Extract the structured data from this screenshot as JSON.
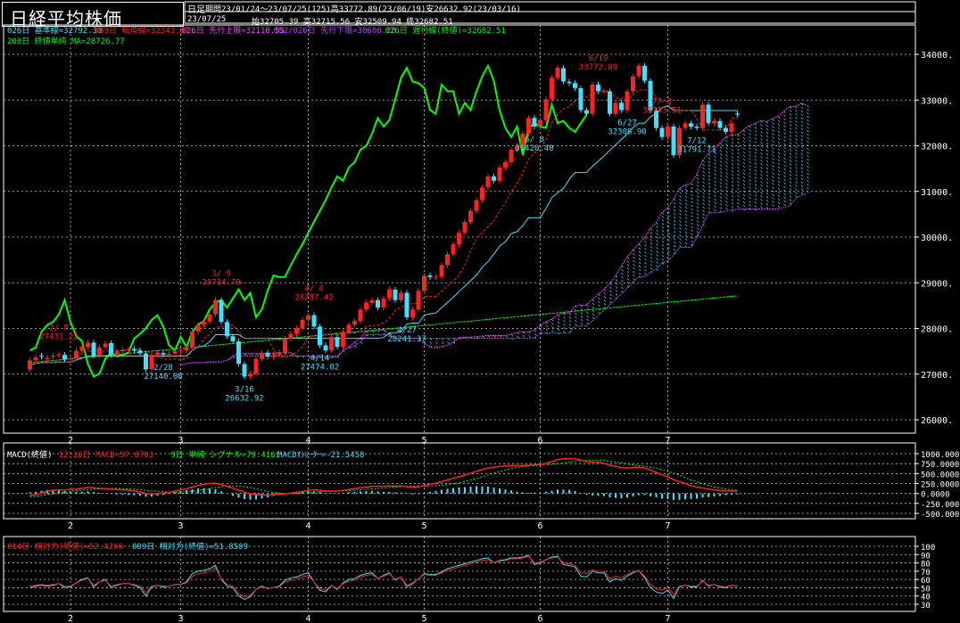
{
  "header": {
    "title": "日経平均株価",
    "period_type": "日足",
    "period_info": "期間23/01/24～23/07/25(125)高33772.89(23/06/19)安26632.92(23/03/16)",
    "date": "23/07/25",
    "ohlc": "始32705.39 高32715.56 安32509.94 終32682.51"
  },
  "colors": {
    "up": "#ff2020",
    "down": "#40e0ff",
    "ma200": "#00ff00",
    "kijun": "#40e0ff",
    "tenkan": "#ff2020",
    "span_a": "#ff40ff",
    "span_b": "#c040ff",
    "chikou": "#00ff00",
    "grid": "#ffffff",
    "text": "#ffffff",
    "cloud": "#40e0ff"
  },
  "main_legend": [
    {
      "text": "026日 基準線=32792.30",
      "color": "#40e0ff"
    },
    {
      "text": "009日 転換線=32343.87",
      "color": "#ff2020"
    },
    {
      "text": "026日 先行上限=32110.55",
      "color": "#ff40ff"
    },
    {
      "text": "052/026日 先行下限=30600.28",
      "color": "#c040ff"
    },
    {
      "text": "026日 遅行線(終値)=32682.51",
      "color": "#00ff00"
    }
  ],
  "main_legend2": {
    "text": "200日 終値単純 MA=28726.77",
    "color": "#00ff00"
  },
  "macd_legend": [
    {
      "text": "MACD(終値)",
      "color": "#ffffff"
    },
    {
      "text": "12-26日 MACD=57.8703",
      "color": "#ff2020"
    },
    {
      "text": "9日 単純 シグナル=79.4161",
      "color": "#00ff00"
    },
    {
      "text": "MACDｵｼﾚｰﾀｰ=-21.5458",
      "color": "#40e0ff"
    }
  ],
  "rsi_legend": [
    {
      "text": "014日 相対力(終値)=52.4266",
      "color": "#ff2020"
    },
    {
      "text": "009日 相対力(終値)=51.8509",
      "color": "#40e0ff"
    }
  ],
  "chart_data": [
    {
      "type": "candlestick",
      "title": "日経平均株価",
      "x_ticks": [
        "2",
        "3",
        "4",
        "5",
        "6",
        "7"
      ],
      "x_tick_bars": [
        6,
        25,
        47,
        67,
        87,
        109
      ],
      "ylim": [
        26000,
        34000
      ],
      "y_ticks": [
        "26000.",
        "27000.",
        "28000.",
        "29000.",
        "30000.",
        "31000.",
        "32000.",
        "33000.",
        "34000."
      ],
      "y_tick_values": [
        26000,
        27000,
        28000,
        29000,
        30000,
        31000,
        32000,
        33000,
        34000
      ],
      "grid": true,
      "close": [
        27299,
        27363,
        27383,
        27362,
        27402,
        27433,
        27327,
        27346,
        27509,
        27606,
        27685,
        27402,
        27584,
        27671,
        27427,
        27501,
        27532,
        27546,
        27513,
        27453,
        27104,
        27423,
        27465,
        27423,
        27445,
        27499,
        27516,
        27583,
        27927,
        28079,
        28144,
        28309,
        28623,
        28143,
        27832,
        27719,
        27223,
        26945,
        27010,
        27334,
        27467,
        27385,
        27419,
        27476,
        27782,
        27883,
        28004,
        28188,
        28287,
        28041,
        27633,
        27518,
        27813,
        27597,
        27923,
        28082,
        28162,
        28416,
        28564,
        28620,
        28457,
        28658,
        28856,
        28622,
        28778,
        28243,
        28417,
        28824,
        29157,
        29123,
        29127,
        29388,
        29626,
        29843,
        30093,
        30334,
        30573,
        30808,
        31086,
        31328,
        31233,
        31524,
        31641,
        31913,
        31997,
        32265,
        32607,
        32419,
        32566,
        33018,
        33485,
        33706,
        33405,
        33370,
        33264,
        32781,
        32698,
        33338,
        33194,
        33193,
        32698,
        32939,
        32781,
        33189,
        33519,
        33753,
        33422,
        32773,
        32388,
        32189,
        32419,
        31791,
        32391,
        32492,
        32419,
        32391,
        32896,
        32493,
        32544,
        32391,
        32304,
        32490,
        32682
      ],
      "open": [
        27100,
        27300,
        27400,
        27330,
        27380,
        27410,
        27420,
        27320,
        27340,
        27510,
        27600,
        27690,
        27400,
        27590,
        27680,
        27420,
        27500,
        27530,
        27550,
        27520,
        27450,
        27110,
        27420,
        27460,
        27420,
        27450,
        27500,
        27520,
        27580,
        27930,
        28080,
        28150,
        28310,
        28620,
        28140,
        27830,
        27720,
        27220,
        26950,
        27010,
        27330,
        27470,
        27380,
        27420,
        27480,
        27780,
        27880,
        28000,
        28190,
        28290,
        28040,
        27630,
        27520,
        27810,
        27600,
        27920,
        28080,
        28160,
        28420,
        28560,
        28620,
        28460,
        28660,
        28850,
        28620,
        28780,
        28240,
        28420,
        28820,
        29160,
        29120,
        29130,
        29390,
        29620,
        29840,
        30090,
        30330,
        30570,
        30810,
        31090,
        31330,
        31230,
        31520,
        31640,
        31910,
        32000,
        32260,
        32610,
        32420,
        32560,
        33020,
        33480,
        33700,
        33400,
        33370,
        33260,
        32780,
        32700,
        33340,
        33190,
        33190,
        32700,
        32940,
        32780,
        33190,
        33520,
        33750,
        33420,
        32770,
        32390,
        32190,
        32420,
        31790,
        32390,
        32490,
        32420,
        32390,
        32900,
        32490,
        32540,
        32390,
        32300,
        32705
      ],
      "annotations": [
        {
          "bar": 5,
          "label": "2/ 8",
          "value": "27431.22",
          "pos": "above"
        },
        {
          "bar": 23,
          "label": "2/28",
          "value": "27140.08",
          "pos": "below"
        },
        {
          "bar": 33,
          "label": "3/ 9",
          "value": "28734.79",
          "pos": "above"
        },
        {
          "bar": 37,
          "label": "3/16",
          "value": "26632.92",
          "pos": "below"
        },
        {
          "bar": 49,
          "label": "4/ 4",
          "value": "28287.42",
          "pos": "above"
        },
        {
          "bar": 50,
          "label": "4/14",
          "value": "27474.02",
          "pos": "below"
        },
        {
          "bar": 65,
          "label": "4/27",
          "value": "28241.37",
          "pos": "below"
        },
        {
          "bar": 87,
          "label": "6/ 8",
          "value": "31420.40",
          "pos": "below"
        },
        {
          "bar": 98,
          "label": "6/19",
          "value": "33772.89",
          "pos": "above"
        },
        {
          "bar": 103,
          "label": "6/27",
          "value": "32308.90",
          "pos": "below"
        },
        {
          "bar": 109,
          "label": "7/ 3",
          "value": "33753.51",
          "pos": "above"
        },
        {
          "bar": 115,
          "label": "7/12",
          "value": "31791.71",
          "pos": "below"
        }
      ]
    },
    {
      "type": "line",
      "title": "MACD(終値)",
      "ylim": [
        -500000,
        1000000
      ],
      "y_ticks": [
        "1000.000",
        "750.0000",
        "500.0000",
        "250.0000",
        "0.0000",
        "-250.000",
        "-500.000"
      ],
      "y_tick_values": [
        1000000,
        750000,
        500000,
        250000,
        0,
        -250000,
        -500000
      ],
      "series": [
        {
          "name": "12-26日 MACD",
          "values": [
            -50000,
            -30000,
            20000,
            60000,
            80000,
            90000,
            90000,
            100000,
            110000,
            130000,
            150000,
            140000,
            130000,
            120000,
            110000,
            100000,
            90000,
            80000,
            60000,
            40000,
            0,
            -10000,
            0,
            10000,
            30000,
            60000,
            90000,
            120000,
            160000,
            200000,
            230000,
            250000,
            260000,
            220000,
            180000,
            130000,
            80000,
            30000,
            -10000,
            -30000,
            -40000,
            -40000,
            -30000,
            -20000,
            -10000,
            10000,
            30000,
            50000,
            80000,
            90000,
            80000,
            60000,
            60000,
            60000,
            80000,
            100000,
            120000,
            140000,
            160000,
            180000,
            180000,
            180000,
            190000,
            190000,
            190000,
            170000,
            160000,
            170000,
            200000,
            230000,
            260000,
            300000,
            340000,
            380000,
            420000,
            460000,
            510000,
            560000,
            600000,
            640000,
            660000,
            680000,
            690000,
            700000,
            700000,
            700000,
            710000,
            720000,
            730000,
            760000,
            800000,
            850000,
            870000,
            880000,
            870000,
            840000,
            800000,
            790000,
            780000,
            760000,
            710000,
            680000,
            650000,
            640000,
            650000,
            660000,
            640000,
            590000,
            530000,
            470000,
            420000,
            350000,
            300000,
            250000,
            200000,
            160000,
            140000,
            110000,
            90000,
            75000,
            65000,
            60000,
            57870
          ]
        },
        {
          "name": "9日 単純 シグナル",
          "values": [
            -80000,
            -70000,
            -50000,
            -30000,
            -10000,
            10000,
            30000,
            50000,
            70000,
            85000,
            95000,
            105000,
            115000,
            120000,
            125000,
            125000,
            120000,
            115000,
            105000,
            95000,
            80000,
            65000,
            55000,
            45000,
            35000,
            30000,
            30000,
            40000,
            55000,
            75000,
            100000,
            125000,
            150000,
            170000,
            185000,
            190000,
            185000,
            170000,
            150000,
            120000,
            85000,
            55000,
            30000,
            10000,
            -5000,
            -10000,
            -5000,
            5000,
            20000,
            35000,
            45000,
            50000,
            55000,
            60000,
            65000,
            70000,
            80000,
            90000,
            100000,
            115000,
            125000,
            140000,
            150000,
            160000,
            170000,
            178000,
            182000,
            183000,
            185000,
            188000,
            195000,
            205000,
            220000,
            245000,
            270000,
            300000,
            335000,
            375000,
            420000,
            465000,
            510000,
            550000,
            590000,
            625000,
            655000,
            675000,
            690000,
            700000,
            710000,
            718000,
            730000,
            750000,
            770000,
            790000,
            810000,
            825000,
            835000,
            838000,
            835000,
            825000,
            810000,
            790000,
            770000,
            745000,
            720000,
            700000,
            680000,
            660000,
            630000,
            600000,
            560000,
            510000,
            460000,
            400000,
            340000,
            290000,
            240000,
            200000,
            165000,
            135000,
            110000,
            92000,
            79416
          ]
        }
      ],
      "histogram": {
        "name": "MACDｵｼﾚｰﾀｰ",
        "values": [
          30000,
          40000,
          70000,
          90000,
          90000,
          80000,
          60000,
          50000,
          40000,
          45000,
          55000,
          35000,
          15000,
          0,
          -15000,
          -25000,
          -30000,
          -35000,
          -45000,
          -55000,
          -80000,
          -75000,
          -55000,
          -35000,
          -5000,
          30000,
          60000,
          80000,
          105000,
          125000,
          130000,
          125000,
          110000,
          50000,
          -5000,
          -60000,
          -105000,
          -140000,
          -160000,
          -150000,
          -125000,
          -95000,
          -60000,
          -30000,
          -5000,
          20000,
          35000,
          45000,
          60000,
          55000,
          35000,
          10000,
          5000,
          0,
          15000,
          30000,
          40000,
          50000,
          60000,
          65000,
          55000,
          40000,
          40000,
          30000,
          20000,
          -8000,
          -22000,
          -13000,
          15000,
          42000,
          65000,
          95000,
          120000,
          135000,
          150000,
          160000,
          175000,
          185000,
          180000,
          175000,
          150000,
          130000,
          100000,
          75000,
          45000,
          25000,
          20000,
          20000,
          20000,
          42000,
          70000,
          100000,
          100000,
          90000,
          60000,
          15000,
          -35000,
          -48000,
          -55000,
          -65000,
          -100000,
          -110000,
          -120000,
          -105000,
          -70000,
          -40000,
          -40000,
          -70000,
          -100000,
          -130000,
          -140000,
          -160000,
          -160000,
          -150000,
          -140000,
          -130000,
          -100000,
          -90000,
          -75000,
          -60000,
          -45000,
          -32000,
          -21546
        ]
      }
    },
    {
      "type": "line",
      "title": "相対力(終値)",
      "ylim": [
        30,
        100
      ],
      "y_ticks": [
        "100",
        "90",
        "80",
        "70",
        "60",
        "50",
        "40",
        "30"
      ],
      "y_tick_values": [
        100,
        90,
        80,
        70,
        60,
        50,
        40,
        30
      ],
      "series": [
        {
          "name": "014日 相対力(終値)",
          "values": [
            52,
            53,
            54,
            53,
            54,
            55,
            52,
            52,
            56,
            59,
            61,
            53,
            57,
            59,
            52,
            54,
            55,
            55,
            54,
            52,
            44,
            52,
            53,
            52,
            52,
            54,
            54,
            56,
            64,
            67,
            68,
            70,
            74,
            61,
            54,
            52,
            43,
            39,
            41,
            48,
            51,
            49,
            50,
            51,
            57,
            59,
            61,
            63,
            65,
            57,
            49,
            47,
            53,
            49,
            55,
            58,
            59,
            63,
            65,
            66,
            61,
            64,
            67,
            60,
            63,
            53,
            56,
            61,
            66,
            65,
            65,
            68,
            71,
            73,
            75,
            77,
            79,
            81,
            83,
            84,
            80,
            82,
            83,
            85,
            85,
            86,
            88,
            80,
            81,
            84,
            86,
            87,
            80,
            79,
            77,
            68,
            67,
            72,
            70,
            70,
            61,
            64,
            62,
            66,
            69,
            71,
            64,
            54,
            49,
            47,
            50,
            42,
            52,
            53,
            52,
            52,
            58,
            53,
            54,
            52,
            51,
            53,
            52.4
          ]
        },
        {
          "name": "009日 相対力(終値)",
          "values": [
            50,
            52,
            53,
            52,
            53,
            55,
            50,
            51,
            56,
            60,
            62,
            51,
            57,
            60,
            50,
            53,
            55,
            55,
            53,
            50,
            40,
            51,
            53,
            51,
            52,
            54,
            54,
            57,
            67,
            70,
            71,
            73,
            77,
            60,
            52,
            50,
            40,
            36,
            39,
            48,
            52,
            49,
            50,
            52,
            59,
            62,
            63,
            66,
            68,
            57,
            47,
            45,
            53,
            48,
            56,
            60,
            61,
            65,
            67,
            68,
            61,
            65,
            68,
            59,
            63,
            51,
            55,
            61,
            67,
            66,
            66,
            69,
            73,
            75,
            77,
            79,
            81,
            83,
            85,
            86,
            80,
            83,
            84,
            86,
            86,
            87,
            89,
            78,
            80,
            84,
            87,
            88,
            78,
            77,
            75,
            64,
            63,
            70,
            68,
            68,
            57,
            61,
            59,
            64,
            68,
            71,
            62,
            50,
            45,
            43,
            47,
            37,
            51,
            53,
            51,
            51,
            59,
            52,
            54,
            51,
            50,
            53,
            51.9
          ]
        }
      ]
    }
  ]
}
